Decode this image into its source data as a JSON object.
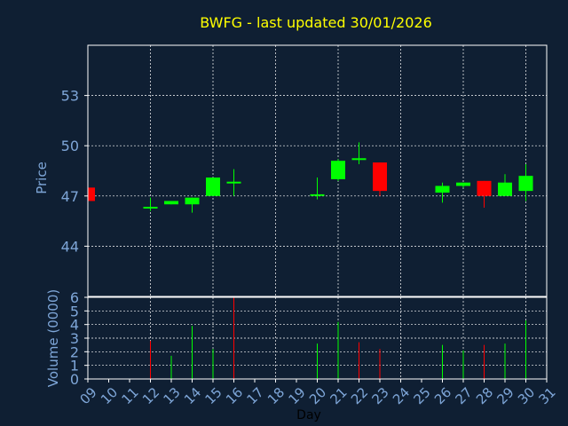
{
  "title": "BWFG - last updated 30/01/2026",
  "colors": {
    "background": "#0f1f33",
    "title": "#ffff00",
    "axis_text": "#7ea6d8",
    "grid": "#ffffff",
    "up": "#00ff00",
    "down": "#ff0000"
  },
  "chart_data": [
    {
      "type": "candlestick",
      "ylabel": "Price",
      "yticks": [
        44,
        47,
        50,
        53
      ],
      "ylim": [
        41.0,
        56.0
      ],
      "grid": true,
      "x": [
        "09",
        "12",
        "13",
        "14",
        "15",
        "16",
        "20",
        "21",
        "22",
        "23",
        "26",
        "27",
        "28",
        "29",
        "30"
      ],
      "open": [
        47.5,
        46.3,
        46.5,
        46.5,
        47.0,
        47.8,
        47.0,
        48.0,
        49.2,
        49.0,
        47.2,
        47.6,
        47.9,
        47.0,
        47.3
      ],
      "high": [
        47.5,
        46.9,
        46.7,
        46.9,
        48.1,
        48.6,
        48.1,
        49.2,
        50.2,
        49.0,
        47.8,
        47.8,
        47.9,
        48.3,
        48.9
      ],
      "low": [
        46.7,
        46.1,
        46.5,
        46.0,
        47.0,
        47.0,
        46.8,
        47.9,
        48.9,
        47.0,
        46.6,
        47.5,
        46.3,
        47.0,
        46.7
      ],
      "close": [
        46.7,
        46.3,
        46.7,
        46.9,
        48.1,
        47.8,
        47.1,
        49.1,
        49.2,
        47.3,
        47.6,
        47.8,
        47.0,
        47.8,
        48.2
      ]
    },
    {
      "type": "bar",
      "ylabel": "Volume (0000)",
      "yticks": [
        0,
        1,
        2,
        3,
        4,
        5,
        6
      ],
      "ylim": [
        0,
        6
      ],
      "xlabel": "Day",
      "x": [
        "12",
        "13",
        "14",
        "15",
        "16",
        "20",
        "21",
        "22",
        "23",
        "26",
        "27",
        "28",
        "29",
        "30"
      ],
      "values": [
        2.8,
        1.7,
        3.9,
        2.2,
        6.0,
        2.6,
        4.2,
        2.7,
        2.2,
        2.5,
        2.1,
        2.5,
        2.6,
        4.3
      ],
      "direction": [
        "down",
        "up",
        "up",
        "up",
        "down",
        "up",
        "up",
        "down",
        "down",
        "up",
        "up",
        "down",
        "up",
        "up"
      ]
    }
  ],
  "x_axis": {
    "tick_labels": [
      "09",
      "10",
      "11",
      "12",
      "13",
      "14",
      "15",
      "16",
      "17",
      "18",
      "19",
      "20",
      "21",
      "22",
      "23",
      "24",
      "25",
      "26",
      "27",
      "28",
      "29",
      "30",
      "31"
    ]
  }
}
